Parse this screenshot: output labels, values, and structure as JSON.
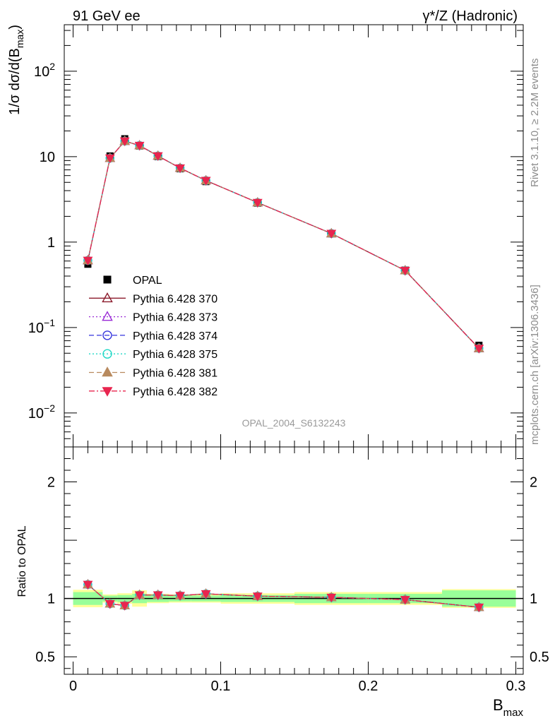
{
  "header": {
    "left_label": "91 GeV ee",
    "right_label": "γ*/Z (Hadronic)"
  },
  "side_labels": {
    "rivet": "Rivet 3.1.10, ≥ 2.2M events",
    "mcplots": "mcplots.cern.ch [arXiv:1306.3436]"
  },
  "watermark": "OPAL_2004_S6132243",
  "chart_data": [
    {
      "type": "scatter",
      "panel": "main",
      "ylabel": "1/σ dσ/d(B_max)",
      "yscale": "log",
      "ylim": [
        0.004,
        350
      ],
      "xlim": [
        -0.006,
        0.305
      ],
      "y_tick_labels": [
        "10^-2",
        "10^-1",
        "1",
        "10",
        "10^2"
      ],
      "x": [
        0.01,
        0.025,
        0.035,
        0.045,
        0.0575,
        0.0725,
        0.09,
        0.125,
        0.175,
        0.225,
        0.275
      ],
      "legend_position": "middle-left",
      "series": [
        {
          "name": "OPAL",
          "color": "#000000",
          "marker": "filled-square",
          "values": [
            0.55,
            10.2,
            16.2,
            13.3,
            10.0,
            7.2,
            5.1,
            2.85,
            1.25,
            0.47,
            0.062
          ]
        },
        {
          "name": "Pythia 6.428 370",
          "color": "#8b1a2b",
          "marker": "open-triangle-up",
          "line": "solid",
          "values": [
            0.61,
            9.6,
            15.2,
            13.5,
            10.2,
            7.35,
            5.25,
            2.9,
            1.26,
            0.465,
            0.057
          ]
        },
        {
          "name": "Pythia 6.428 373",
          "color": "#9a2bd6",
          "marker": "open-triangle-up",
          "line": "dotted",
          "values": [
            0.61,
            9.6,
            15.2,
            13.5,
            10.2,
            7.35,
            5.25,
            2.9,
            1.26,
            0.465,
            0.057
          ]
        },
        {
          "name": "Pythia 6.428 374",
          "color": "#3333dd",
          "marker": "open-circle",
          "line": "dashed",
          "values": [
            0.61,
            9.6,
            15.2,
            13.5,
            10.2,
            7.35,
            5.25,
            2.9,
            1.26,
            0.465,
            0.057
          ]
        },
        {
          "name": "Pythia 6.428 375",
          "color": "#1fd8c6",
          "marker": "open-circle",
          "line": "dotted",
          "values": [
            0.61,
            9.6,
            15.2,
            13.5,
            10.2,
            7.35,
            5.25,
            2.9,
            1.26,
            0.465,
            0.057
          ]
        },
        {
          "name": "Pythia 6.428 381",
          "color": "#b88a5e",
          "marker": "filled-triangle-up",
          "line": "dashed",
          "values": [
            0.61,
            9.6,
            15.2,
            13.5,
            10.2,
            7.35,
            5.25,
            2.9,
            1.26,
            0.465,
            0.057
          ]
        },
        {
          "name": "Pythia 6.428 382",
          "color": "#e8254f",
          "marker": "filled-triangle-down",
          "line": "dashdot",
          "values": [
            0.61,
            9.6,
            15.2,
            13.5,
            10.2,
            7.35,
            5.25,
            2.9,
            1.26,
            0.465,
            0.057
          ]
        }
      ]
    },
    {
      "type": "line",
      "panel": "ratio",
      "ylabel": "Ratio to OPAL",
      "xlabel": "B_max",
      "ylim": [
        0.35,
        2.3
      ],
      "xlim": [
        -0.006,
        0.305
      ],
      "y_ticks": [
        0.5,
        1,
        2
      ],
      "y_tick_labels": [
        "0.5",
        "1",
        "2"
      ],
      "x_ticks": [
        0,
        0.1,
        0.2,
        0.3
      ],
      "x_tick_labels": [
        "0",
        "0.1",
        "0.2",
        "0.3"
      ],
      "x": [
        0.01,
        0.025,
        0.035,
        0.045,
        0.0575,
        0.0725,
        0.09,
        0.125,
        0.175,
        0.225,
        0.275
      ],
      "bin_edges": [
        0,
        0.02,
        0.03,
        0.04,
        0.05,
        0.065,
        0.08,
        0.1,
        0.15,
        0.2,
        0.25,
        0.3
      ],
      "band_inner": [
        0.055,
        0.025,
        0.03,
        0.04,
        0.03,
        0.025,
        0.025,
        0.03,
        0.04,
        0.04,
        0.07
      ],
      "band_outer": [
        0.075,
        0.035,
        0.045,
        0.07,
        0.04,
        0.035,
        0.035,
        0.045,
        0.055,
        0.055,
        0.08
      ],
      "band_colors": {
        "inner": "#99ff99",
        "outer": "#ffff99"
      },
      "values": [
        1.12,
        0.955,
        0.94,
        1.03,
        1.03,
        1.025,
        1.04,
        1.02,
        1.01,
        0.99,
        0.925
      ]
    }
  ]
}
